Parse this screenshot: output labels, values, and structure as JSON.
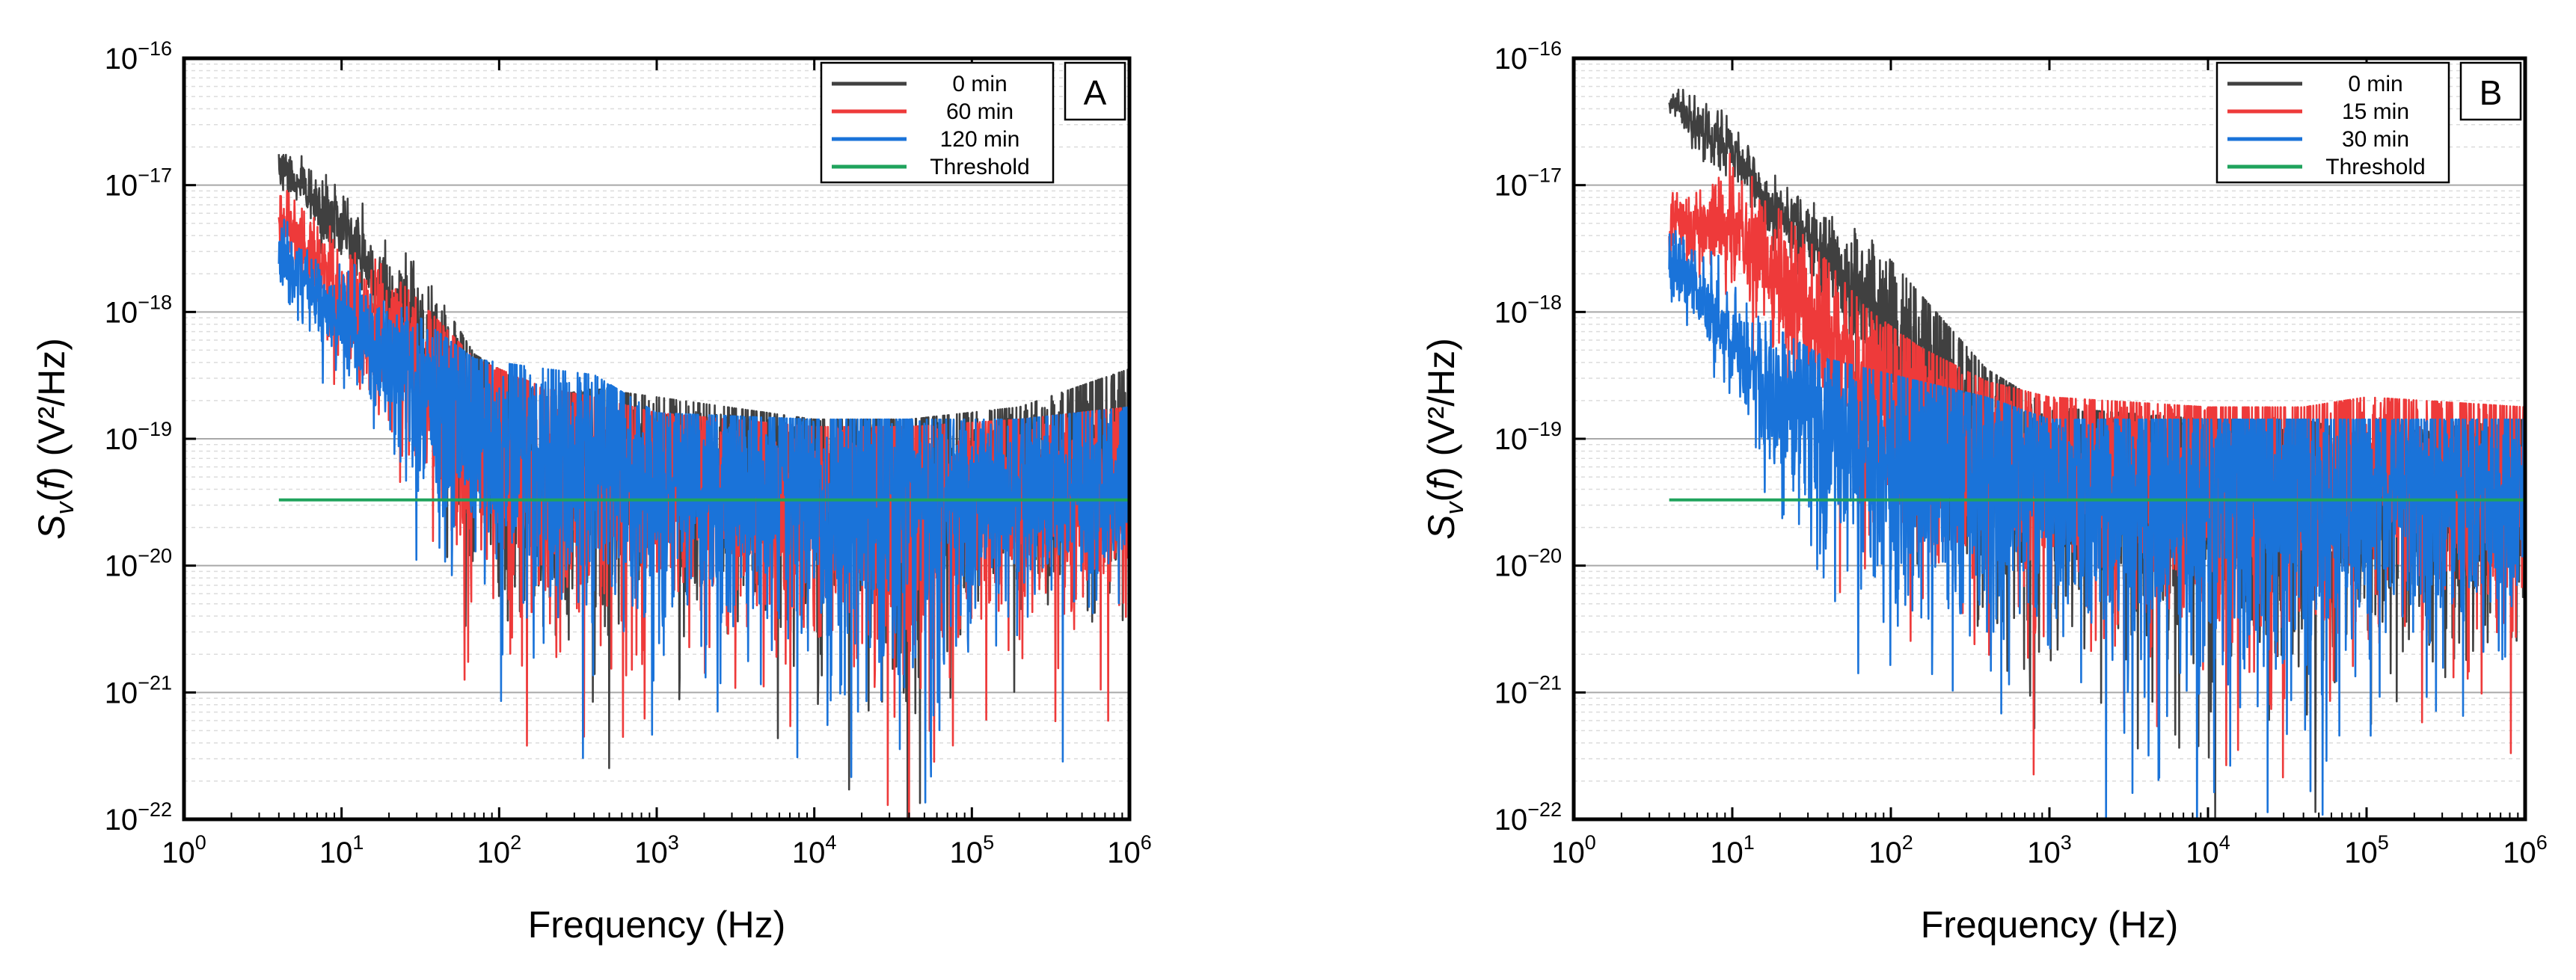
{
  "chart_data": [
    {
      "type": "line",
      "panel_label": "A",
      "xlabel": "Frequency (Hz)",
      "ylabel_main": "S",
      "ylabel_sub": "v",
      "ylabel_paren": "(",
      "ylabel_f": "f",
      "ylabel_rest": ") (V²/Hz)",
      "x_scale": "log",
      "y_scale": "log",
      "xlim": [
        1,
        1000000
      ],
      "ylim": [
        1e-22,
        1e-16
      ],
      "x_ticks": [
        {
          "base": "10",
          "exp": "0",
          "value": 1
        },
        {
          "base": "10",
          "exp": "1",
          "value": 10
        },
        {
          "base": "10",
          "exp": "2",
          "value": 100
        },
        {
          "base": "10",
          "exp": "3",
          "value": 1000
        },
        {
          "base": "10",
          "exp": "4",
          "value": 10000
        },
        {
          "base": "10",
          "exp": "5",
          "value": 100000
        },
        {
          "base": "10",
          "exp": "6",
          "value": 1000000
        }
      ],
      "y_ticks": [
        {
          "base": "10",
          "exp": "−22",
          "value": 1e-22
        },
        {
          "base": "10",
          "exp": "−21",
          "value": 1e-21
        },
        {
          "base": "10",
          "exp": "−20",
          "value": 1e-20
        },
        {
          "base": "10",
          "exp": "−19",
          "value": 1e-19
        },
        {
          "base": "10",
          "exp": "−18",
          "value": 1e-18
        },
        {
          "base": "10",
          "exp": "−17",
          "value": 1e-17
        },
        {
          "base": "10",
          "exp": "−16",
          "value": 1e-16
        }
      ],
      "grid": true,
      "legend_position": "top-right",
      "threshold": {
        "name": "Threshold",
        "value": 3.3e-20,
        "x_range": [
          4,
          1000000
        ],
        "color": "#1fa35c"
      },
      "series": [
        {
          "name": "0 min",
          "color": "#404040",
          "trend": [
            [
              4,
              1.4e-17
            ],
            [
              10,
              4.5e-18
            ],
            [
              20,
              1.3e-18
            ],
            [
              40,
              4e-19
            ],
            [
              70,
              1.3e-19
            ],
            [
              200,
              6e-20
            ],
            [
              400,
              7e-20
            ],
            [
              1000,
              6e-20
            ],
            [
              10000,
              4e-20
            ],
            [
              40000,
              4e-20
            ],
            [
              200000,
              5e-20
            ],
            [
              1000000,
              1e-19
            ]
          ],
          "spread": [
            [
              4,
              0.15
            ],
            [
              20,
              0.3
            ],
            [
              60,
              0.9
            ],
            [
              400,
              1.1
            ],
            [
              1000,
              0.8
            ],
            [
              10000,
              1.0
            ],
            [
              40000,
              1.2
            ],
            [
              100000,
              0.7
            ],
            [
              1000000,
              0.9
            ]
          ]
        },
        {
          "name": "60 min",
          "color": "#ee3a3a",
          "trend": [
            [
              4,
              5.5e-18
            ],
            [
              10,
              1.2e-18
            ],
            [
              20,
              6e-19
            ],
            [
              40,
              2.5e-19
            ],
            [
              70,
              1.2e-19
            ],
            [
              200,
              7e-20
            ],
            [
              400,
              6e-20
            ],
            [
              1000,
              4.5e-20
            ],
            [
              10000,
              3.5e-20
            ],
            [
              40000,
              3.5e-20
            ],
            [
              200000,
              4e-20
            ],
            [
              1000000,
              5e-20
            ]
          ],
          "spread": [
            [
              4,
              0.2
            ],
            [
              20,
              0.5
            ],
            [
              60,
              1.0
            ],
            [
              400,
              1.1
            ],
            [
              1000,
              0.9
            ],
            [
              10000,
              1.0
            ],
            [
              40000,
              1.3
            ],
            [
              100000,
              0.8
            ],
            [
              1000000,
              0.9
            ]
          ]
        },
        {
          "name": "120 min",
          "color": "#1a73d9",
          "trend": [
            [
              4,
              3e-18
            ],
            [
              10,
              8e-19
            ],
            [
              20,
              4e-19
            ],
            [
              40,
              2e-19
            ],
            [
              70,
              1.2e-19
            ],
            [
              200,
              1e-19
            ],
            [
              400,
              9e-20
            ],
            [
              1000,
              4.5e-20
            ],
            [
              10000,
              4e-20
            ],
            [
              40000,
              4e-20
            ],
            [
              200000,
              4e-20
            ],
            [
              1000000,
              5e-20
            ]
          ],
          "spread": [
            [
              4,
              0.25
            ],
            [
              20,
              0.5
            ],
            [
              60,
              1.0
            ],
            [
              400,
              1.0
            ],
            [
              1000,
              0.9
            ],
            [
              10000,
              1.0
            ],
            [
              40000,
              1.2
            ],
            [
              100000,
              0.8
            ],
            [
              1000000,
              0.8
            ]
          ]
        }
      ]
    },
    {
      "type": "line",
      "panel_label": "B",
      "xlabel": "Frequency (Hz)",
      "ylabel_main": "S",
      "ylabel_sub": "v",
      "ylabel_paren": "(",
      "ylabel_f": "f",
      "ylabel_rest": ") (V²/Hz)",
      "x_scale": "log",
      "y_scale": "log",
      "xlim": [
        1,
        1000000
      ],
      "ylim": [
        1e-22,
        1e-16
      ],
      "x_ticks": [
        {
          "base": "10",
          "exp": "0",
          "value": 1
        },
        {
          "base": "10",
          "exp": "1",
          "value": 10
        },
        {
          "base": "10",
          "exp": "2",
          "value": 100
        },
        {
          "base": "10",
          "exp": "3",
          "value": 1000
        },
        {
          "base": "10",
          "exp": "4",
          "value": 10000
        },
        {
          "base": "10",
          "exp": "5",
          "value": 100000
        },
        {
          "base": "10",
          "exp": "6",
          "value": 1000000
        }
      ],
      "y_ticks": [
        {
          "base": "10",
          "exp": "−22",
          "value": 1e-22
        },
        {
          "base": "10",
          "exp": "−21",
          "value": 1e-21
        },
        {
          "base": "10",
          "exp": "−20",
          "value": 1e-20
        },
        {
          "base": "10",
          "exp": "−19",
          "value": 1e-19
        },
        {
          "base": "10",
          "exp": "−18",
          "value": 1e-18
        },
        {
          "base": "10",
          "exp": "−17",
          "value": 1e-17
        },
        {
          "base": "10",
          "exp": "−16",
          "value": 1e-16
        }
      ],
      "grid": true,
      "legend_position": "top-right",
      "threshold": {
        "name": "Threshold",
        "value": 3.3e-20,
        "x_range": [
          4,
          1000000
        ],
        "color": "#1fa35c"
      },
      "series": [
        {
          "name": "0 min",
          "color": "#404040",
          "trend": [
            [
              4,
              5e-17
            ],
            [
              10,
              1.8e-17
            ],
            [
              20,
              6e-18
            ],
            [
              40,
              2.5e-18
            ],
            [
              70,
              1.2e-18
            ],
            [
              150,
              4e-19
            ],
            [
              400,
              1e-19
            ],
            [
              1000,
              5e-20
            ],
            [
              10000,
              4e-20
            ],
            [
              40000,
              4e-20
            ],
            [
              100000,
              3e-20
            ],
            [
              1000000,
              4e-20
            ]
          ],
          "spread": [
            [
              4,
              0.1
            ],
            [
              20,
              0.2
            ],
            [
              70,
              0.4
            ],
            [
              150,
              1.0
            ],
            [
              400,
              1.2
            ],
            [
              1000,
              0.9
            ],
            [
              10000,
              1.2
            ],
            [
              40000,
              1.3
            ],
            [
              100000,
              0.9
            ],
            [
              1000000,
              1.1
            ]
          ]
        },
        {
          "name": "15 min",
          "color": "#ee3a3a",
          "trend": [
            [
              4,
              4.5e-18
            ],
            [
              10,
              5e-18
            ],
            [
              20,
              1.8e-18
            ],
            [
              40,
              7e-19
            ],
            [
              70,
              3e-19
            ],
            [
              150,
              1.5e-19
            ],
            [
              400,
              8e-20
            ],
            [
              1000,
              6e-20
            ],
            [
              10000,
              5e-20
            ],
            [
              40000,
              5e-20
            ],
            [
              100000,
              6e-20
            ],
            [
              1000000,
              5e-20
            ]
          ],
          "spread": [
            [
              4,
              0.2
            ],
            [
              20,
              0.5
            ],
            [
              70,
              0.8
            ],
            [
              150,
              1.0
            ],
            [
              400,
              1.1
            ],
            [
              1000,
              0.9
            ],
            [
              10000,
              1.1
            ],
            [
              40000,
              1.3
            ],
            [
              100000,
              0.8
            ],
            [
              1000000,
              1.0
            ]
          ]
        },
        {
          "name": "30 min",
          "color": "#1a73d9",
          "trend": [
            [
              4,
              2.5e-18
            ],
            [
              6,
              1.5e-18
            ],
            [
              12,
              4e-19
            ],
            [
              20,
              2e-19
            ],
            [
              40,
              1.2e-19
            ],
            [
              150,
              8e-20
            ],
            [
              400,
              6e-20
            ],
            [
              1000,
              4e-20
            ],
            [
              10000,
              4e-20
            ],
            [
              40000,
              4e-20
            ],
            [
              100000,
              4e-20
            ],
            [
              1000000,
              4e-20
            ]
          ],
          "spread": [
            [
              4,
              0.2
            ],
            [
              12,
              0.4
            ],
            [
              40,
              0.9
            ],
            [
              150,
              1.1
            ],
            [
              400,
              1.2
            ],
            [
              1000,
              0.9
            ],
            [
              10000,
              1.2
            ],
            [
              40000,
              1.3
            ],
            [
              100000,
              0.9
            ],
            [
              1000000,
              1.0
            ]
          ]
        }
      ]
    }
  ]
}
